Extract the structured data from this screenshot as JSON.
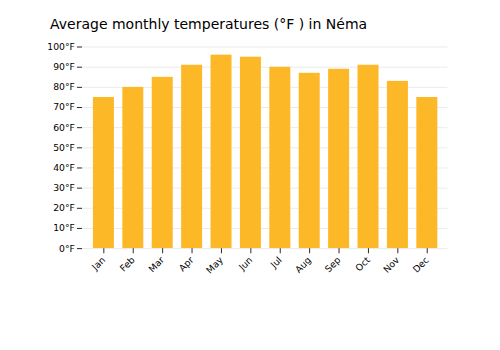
{
  "chart_data": {
    "type": "bar",
    "title": "Average monthly temperatures (°F ) in Néma",
    "categories": [
      "Jan",
      "Feb",
      "Mar",
      "Apr",
      "May",
      "Jun",
      "Jul",
      "Aug",
      "Sep",
      "Oct",
      "Nov",
      "Dec"
    ],
    "values": [
      75,
      80,
      85,
      91,
      96,
      95,
      90,
      87,
      89,
      91,
      83,
      75
    ],
    "color": "#FDB827",
    "ylim": [
      0,
      100
    ],
    "yticks": [
      {
        "value": 0,
        "label": "0°F"
      },
      {
        "value": 10,
        "label": "10°F"
      },
      {
        "value": 20,
        "label": "20°F"
      },
      {
        "value": 30,
        "label": "30°F"
      },
      {
        "value": 40,
        "label": "40°F"
      },
      {
        "value": 50,
        "label": "50°F"
      },
      {
        "value": 60,
        "label": "60°F"
      },
      {
        "value": 70,
        "label": "70°F"
      },
      {
        "value": 80,
        "label": "80°F"
      },
      {
        "value": 90,
        "label": "90°F"
      },
      {
        "value": 100,
        "label": "100°F"
      }
    ],
    "grid": true
  }
}
